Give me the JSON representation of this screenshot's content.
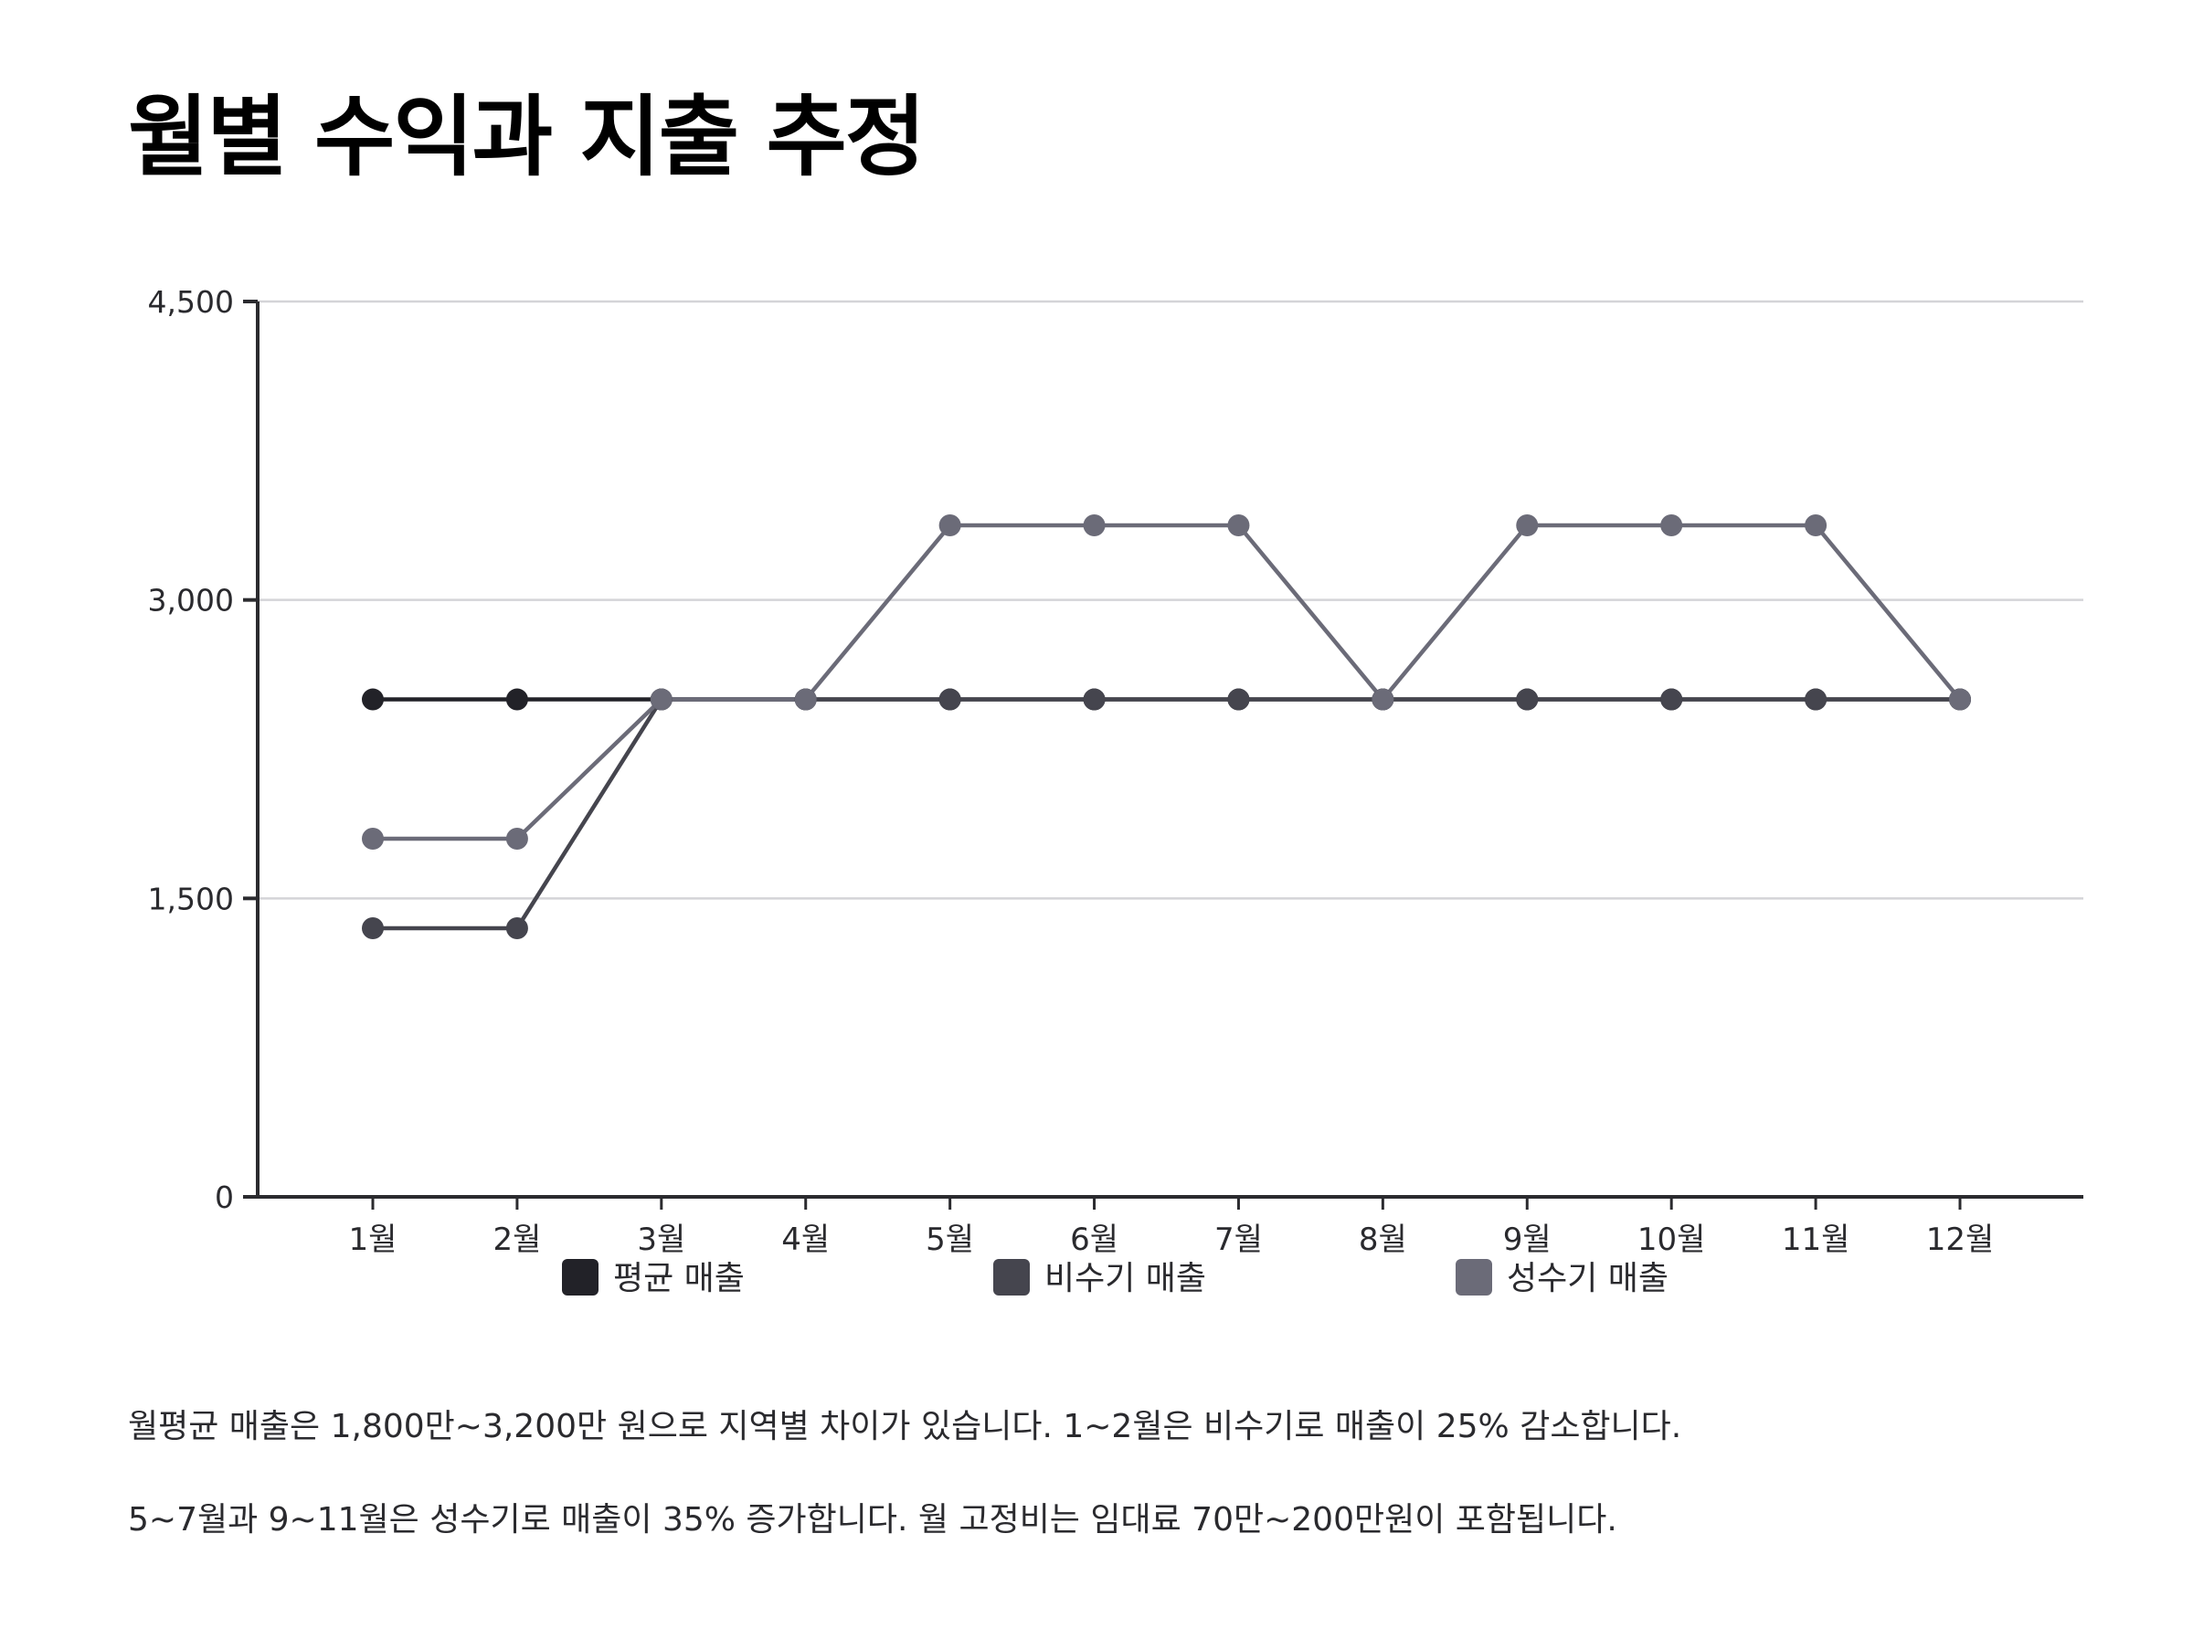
{
  "title": "월별 수익과 지출 추정",
  "notes": [
    "월평균 매출은 1,800만~3,200만 원으로 지역별 차이가 있습니다. 1~2월은 비수기로 매출이 25% 감소합니다.",
    "5~7월과 9~11월은 성수기로 매출이 35% 증가합니다. 월 고정비는 임대료 70만~200만원이 포함됩니다."
  ],
  "chart_data": {
    "type": "line",
    "title": "",
    "xlabel": "",
    "ylabel": "",
    "categories": [
      "1월",
      "2월",
      "3월",
      "4월",
      "5월",
      "6월",
      "7월",
      "8월",
      "9월",
      "10월",
      "11월",
      "12월"
    ],
    "ylim": [
      0,
      4500
    ],
    "yticks": [
      0,
      1500,
      3000,
      4500
    ],
    "ytick_labels": [
      "0",
      "1,500",
      "3,000",
      "4,500"
    ],
    "grid": "horizontal",
    "legend_position": "bottom",
    "series": [
      {
        "name": "평균 매출",
        "color": "#222228",
        "values": [
          2500,
          2500,
          2500,
          2500,
          2500,
          2500,
          2500,
          2500,
          2500,
          2500,
          2500,
          2500
        ]
      },
      {
        "name": "비수기 매출",
        "color": "#45454e",
        "values": [
          1350,
          1350,
          2500,
          2500,
          2500,
          2500,
          2500,
          2500,
          2500,
          2500,
          2500,
          2500
        ]
      },
      {
        "name": "성수기 매출",
        "color": "#6b6b78",
        "values": [
          1800,
          1800,
          2500,
          2500,
          3375,
          3375,
          3375,
          2500,
          3375,
          3375,
          3375,
          2500
        ]
      }
    ]
  }
}
